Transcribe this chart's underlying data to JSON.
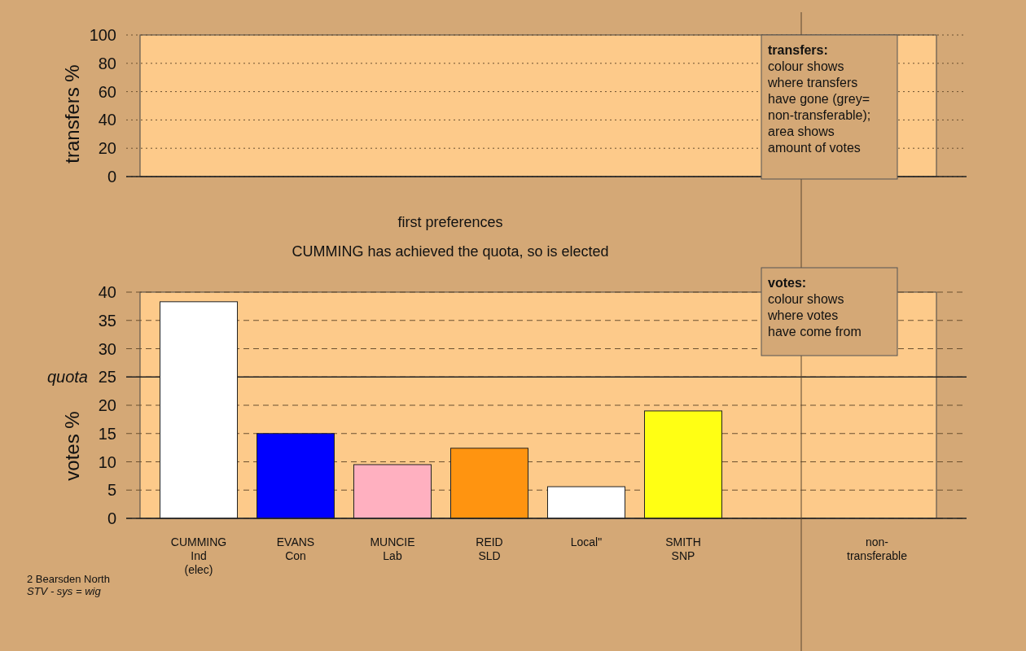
{
  "chart_data": [
    {
      "type": "bar",
      "categories": [
        null,
        null,
        null,
        null,
        null,
        null,
        null,
        null
      ],
      "values": [
        null,
        null,
        null,
        null,
        null,
        null,
        null,
        null
      ],
      "ylabel": "transfers %",
      "ylim": [
        0,
        100
      ],
      "yticks": [
        0,
        20,
        40,
        60,
        80,
        100
      ],
      "grid": true,
      "tick_labels": "y",
      "annotations": [
        "transfers:\ncolour shows\nwhere transfers\nhave gone (grey=\nnon-transferable);\narea shows\namount of votes"
      ]
    },
    {
      "type": "bar",
      "title": "first preferences",
      "subtitle": "CUMMING has achieved the quota, so is elected",
      "categories": [
        "CUMMING\nInd\n(elec)",
        "EVANS\nCon",
        "MUNCIE\nLab",
        "REID\nSLD",
        "Local\"",
        "SMITH\nSNP",
        null,
        "non-\ntransferable"
      ],
      "values": [
        38.3,
        15.0,
        9.5,
        12.4,
        5.6,
        19.0,
        null,
        null
      ],
      "colors": [
        "#ffffff",
        "#0000ff",
        "#ffb0c0",
        "#ff9410",
        "#ffffff",
        "#ffff14",
        null,
        null
      ],
      "ylabel": "votes %",
      "ylim": [
        0,
        40
      ],
      "yticks": [
        0,
        5,
        10,
        15,
        20,
        25,
        30,
        35,
        40
      ],
      "grid": true,
      "ref_lines": [
        {
          "axis": "y",
          "value": 25,
          "label": "quota"
        }
      ],
      "annotations": [
        "votes:\ncolour shows\nwhere votes\nhave come from",
        "2 Bearsden North",
        "STV - sys = wig"
      ]
    }
  ]
}
